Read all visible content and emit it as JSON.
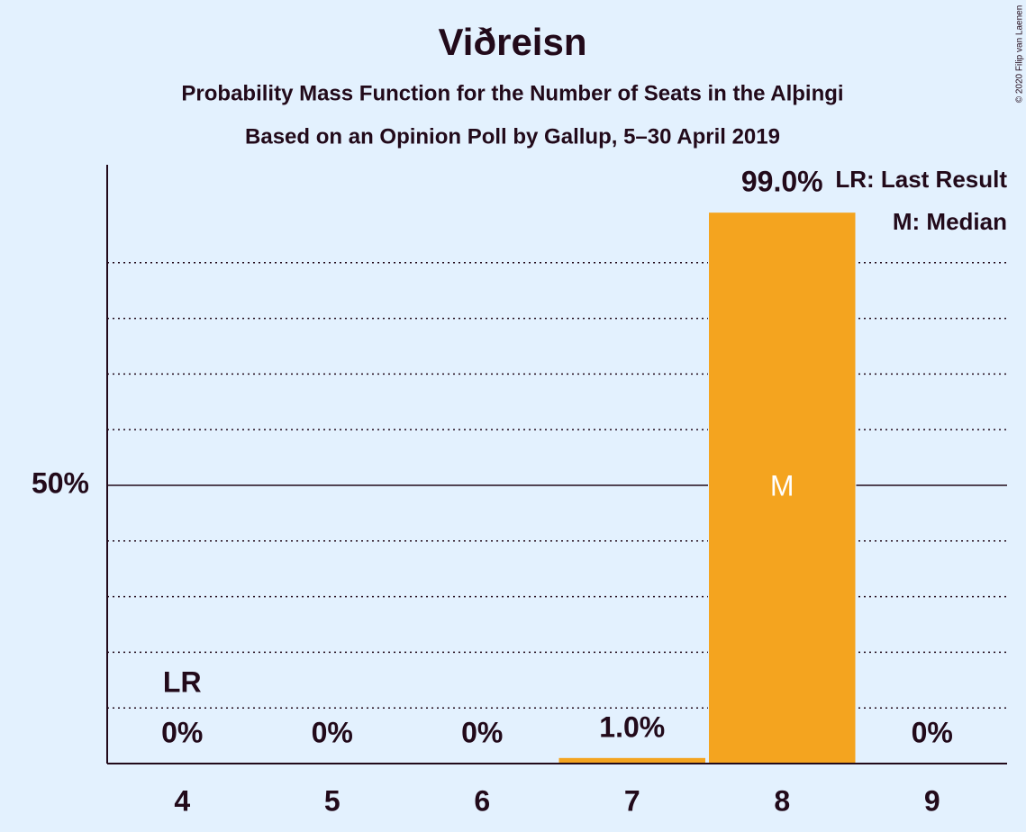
{
  "chart_data": {
    "type": "bar",
    "title": "Viðreisn",
    "subtitle": "Probability Mass Function for the Number of Seats in the Alþingi",
    "subtitle2": "Based on an Opinion Poll by Gallup, 5–30 April 2019",
    "copyright": "© 2020 Filip van Laenen",
    "categories": [
      4,
      5,
      6,
      7,
      8,
      9
    ],
    "values": [
      0,
      0,
      0,
      1.0,
      99.0,
      0
    ],
    "value_labels": [
      "0%",
      "0%",
      "0%",
      "1.0%",
      "99.0%",
      "0%"
    ],
    "color": "#f4a41f",
    "ylim": [
      0,
      107.6
    ],
    "yticks": [
      {
        "value": 50,
        "label": "50%"
      }
    ],
    "minor_grid": [
      10,
      20,
      30,
      40,
      60,
      70,
      80,
      90
    ],
    "annotations": [
      {
        "text": "LR",
        "x": 4
      },
      {
        "text": "M",
        "x": 8
      }
    ],
    "legend": [
      "LR: Last Result",
      "M: Median"
    ]
  }
}
